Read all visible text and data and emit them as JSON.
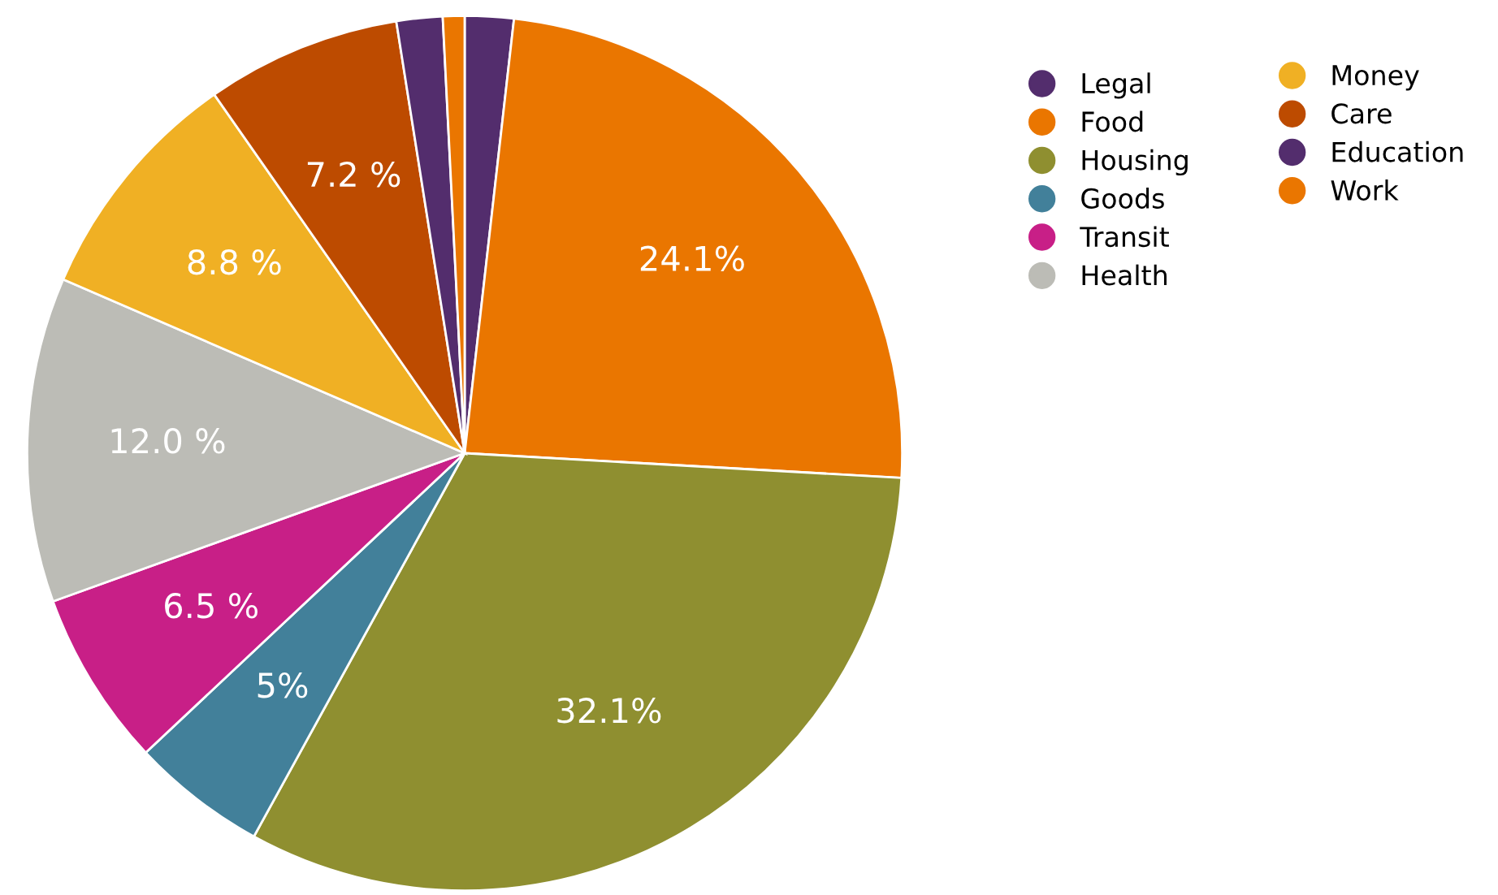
{
  "chart_data": {
    "type": "pie",
    "categories": [
      "Legal",
      "Food",
      "Housing",
      "Goods",
      "Transit",
      "Health",
      "Money",
      "Care",
      "Education",
      "Work"
    ],
    "values": [
      1.8,
      24.1,
      32.1,
      5,
      6.5,
      12.0,
      8.8,
      7.2,
      1.7,
      0.8
    ],
    "value_labels": [
      null,
      "24.1%",
      "32.1%",
      "5%",
      "6.5 %",
      "12.0 %",
      "8.8 %",
      "7.2 %",
      null,
      null
    ],
    "colors": [
      "#532d6d",
      "#ea7600",
      "#8f8f30",
      "#42809a",
      "#c81f87",
      "#bcbcb6",
      "#f0b024",
      "#bd4b00",
      "#532d6d",
      "#ea7600"
    ],
    "legend": "right"
  }
}
